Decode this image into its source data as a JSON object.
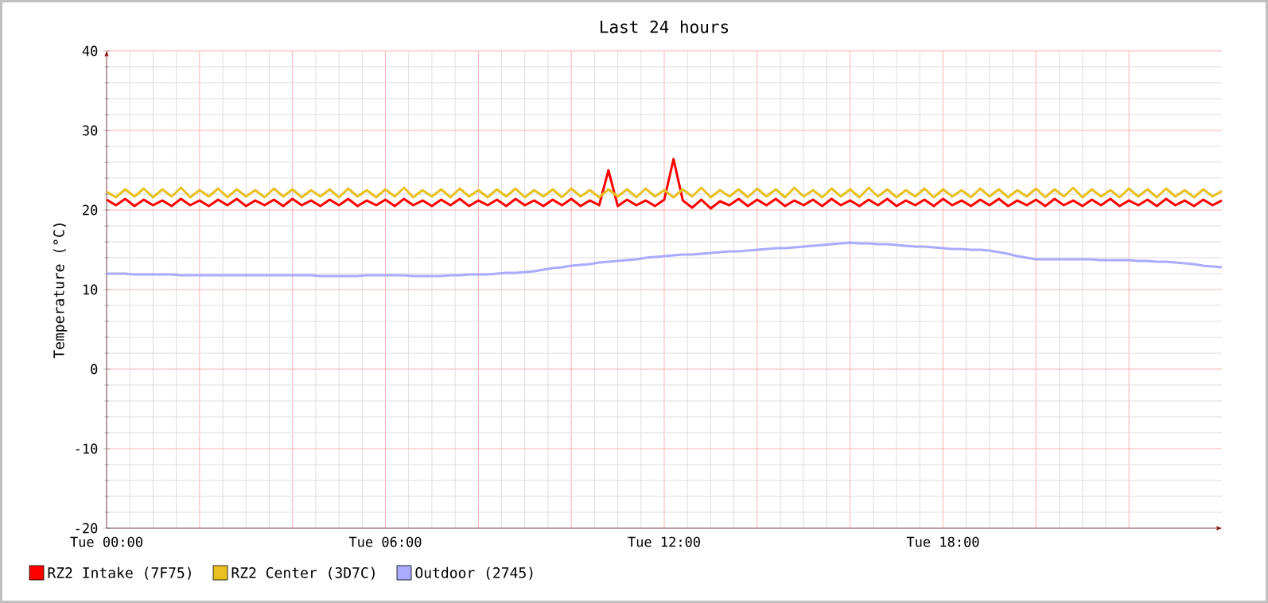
{
  "chart_data": {
    "type": "line",
    "title": "Last 24 hours",
    "ylabel": "Temperature (°C)",
    "ylim": [
      -20,
      40
    ],
    "yticks": [
      -20,
      -10,
      0,
      10,
      20,
      30,
      40
    ],
    "grid": true,
    "legend": "bottom",
    "categories": [
      "Tue 00:00",
      null,
      null,
      null,
      null,
      null,
      null,
      null,
      null,
      null,
      null,
      null,
      null,
      null,
      null,
      null,
      null,
      null,
      null,
      null,
      null,
      null,
      null,
      null,
      null,
      null,
      null,
      null,
      null,
      null,
      "Tue 06:00",
      null,
      null,
      null,
      null,
      null,
      null,
      null,
      null,
      null,
      null,
      null,
      null,
      null,
      null,
      null,
      null,
      null,
      null,
      null,
      null,
      null,
      null,
      null,
      null,
      null,
      null,
      null,
      null,
      null,
      "Tue 12:00",
      null,
      null,
      null,
      null,
      null,
      null,
      null,
      null,
      null,
      null,
      null,
      null,
      null,
      null,
      null,
      null,
      null,
      null,
      null,
      null,
      null,
      null,
      null,
      null,
      null,
      null,
      null,
      null,
      null,
      "Tue 18:00",
      null,
      null,
      null,
      null,
      null,
      null,
      null,
      null,
      null,
      null,
      null,
      null,
      null,
      null,
      null,
      null,
      null,
      null,
      null,
      null,
      null,
      null,
      null,
      null,
      null,
      null,
      null,
      null,
      null,
      null
    ],
    "series": [
      {
        "name": "RZ2 Center (3D7C)",
        "color": "#e8c020",
        "values": [
          22.3,
          21.6,
          22.6,
          21.7,
          22.7,
          21.6,
          22.6,
          21.7,
          22.8,
          21.6,
          22.5,
          21.7,
          22.7,
          21.6,
          22.6,
          21.7,
          22.5,
          21.6,
          22.7,
          21.7,
          22.6,
          21.6,
          22.5,
          21.7,
          22.6,
          21.6,
          22.7,
          21.7,
          22.5,
          21.6,
          22.6,
          21.7,
          22.8,
          21.6,
          22.5,
          21.7,
          22.6,
          21.6,
          22.7,
          21.7,
          22.5,
          21.6,
          22.6,
          21.7,
          22.7,
          21.6,
          22.5,
          21.7,
          22.6,
          21.6,
          22.7,
          21.7,
          22.5,
          21.6,
          22.6,
          21.7,
          22.6,
          21.6,
          22.7,
          21.7,
          22.5,
          21.6,
          22.6,
          21.7,
          22.8,
          21.6,
          22.5,
          21.7,
          22.6,
          21.6,
          22.7,
          21.7,
          22.6,
          21.6,
          22.8,
          21.7,
          22.5,
          21.6,
          22.7,
          21.7,
          22.6,
          21.6,
          22.8,
          21.7,
          22.6,
          21.6,
          22.5,
          21.7,
          22.7,
          21.6,
          22.6,
          21.7,
          22.5,
          21.6,
          22.7,
          21.7,
          22.6,
          21.6,
          22.5,
          21.7,
          22.7,
          21.6,
          22.6,
          21.7,
          22.8,
          21.6,
          22.6,
          21.7,
          22.5,
          21.6,
          22.7,
          21.7,
          22.6,
          21.6,
          22.7,
          21.7,
          22.5,
          21.6,
          22.6,
          21.7,
          22.4
        ]
      },
      {
        "name": "RZ2 Intake (7F75)",
        "color": "#ff0000",
        "values": [
          21.3,
          20.6,
          21.4,
          20.5,
          21.3,
          20.6,
          21.2,
          20.5,
          21.4,
          20.6,
          21.2,
          20.5,
          21.3,
          20.6,
          21.4,
          20.5,
          21.2,
          20.6,
          21.3,
          20.5,
          21.4,
          20.6,
          21.2,
          20.5,
          21.3,
          20.6,
          21.4,
          20.5,
          21.2,
          20.6,
          21.3,
          20.5,
          21.4,
          20.6,
          21.2,
          20.5,
          21.3,
          20.6,
          21.4,
          20.5,
          21.2,
          20.6,
          21.3,
          20.5,
          21.4,
          20.6,
          21.2,
          20.5,
          21.3,
          20.6,
          21.4,
          20.5,
          21.2,
          20.6,
          25.0,
          20.5,
          21.3,
          20.6,
          21.2,
          20.5,
          21.3,
          26.4,
          21.2,
          20.3,
          21.3,
          20.2,
          21.1,
          20.6,
          21.4,
          20.5,
          21.3,
          20.6,
          21.4,
          20.5,
          21.2,
          20.6,
          21.3,
          20.5,
          21.4,
          20.6,
          21.2,
          20.5,
          21.3,
          20.6,
          21.4,
          20.5,
          21.2,
          20.6,
          21.3,
          20.5,
          21.4,
          20.6,
          21.2,
          20.5,
          21.3,
          20.6,
          21.4,
          20.5,
          21.2,
          20.6,
          21.3,
          20.5,
          21.4,
          20.6,
          21.2,
          20.5,
          21.3,
          20.6,
          21.4,
          20.5,
          21.2,
          20.6,
          21.3,
          20.5,
          21.4,
          20.6,
          21.2,
          20.5,
          21.3,
          20.6,
          21.2
        ]
      },
      {
        "name": "Outdoor (2745)",
        "color": "#aaaaff",
        "values": [
          12.0,
          12.0,
          12.0,
          11.9,
          11.9,
          11.9,
          11.9,
          11.9,
          11.8,
          11.8,
          11.8,
          11.8,
          11.8,
          11.8,
          11.8,
          11.8,
          11.8,
          11.8,
          11.8,
          11.8,
          11.8,
          11.8,
          11.8,
          11.7,
          11.7,
          11.7,
          11.7,
          11.7,
          11.8,
          11.8,
          11.8,
          11.8,
          11.8,
          11.7,
          11.7,
          11.7,
          11.7,
          11.8,
          11.8,
          11.9,
          11.9,
          11.9,
          12.0,
          12.1,
          12.1,
          12.2,
          12.3,
          12.5,
          12.7,
          12.8,
          13.0,
          13.1,
          13.2,
          13.4,
          13.5,
          13.6,
          13.7,
          13.8,
          14.0,
          14.1,
          14.2,
          14.3,
          14.4,
          14.4,
          14.5,
          14.6,
          14.7,
          14.8,
          14.8,
          14.9,
          15.0,
          15.1,
          15.2,
          15.2,
          15.3,
          15.4,
          15.5,
          15.6,
          15.7,
          15.8,
          15.9,
          15.8,
          15.8,
          15.7,
          15.7,
          15.6,
          15.5,
          15.4,
          15.4,
          15.3,
          15.2,
          15.1,
          15.1,
          15.0,
          15.0,
          14.9,
          14.7,
          14.5,
          14.2,
          14.0,
          13.8,
          13.8,
          13.8,
          13.8,
          13.8,
          13.8,
          13.8,
          13.7,
          13.7,
          13.7,
          13.7,
          13.6,
          13.6,
          13.5,
          13.5,
          13.4,
          13.3,
          13.2,
          13.0,
          12.9,
          12.8
        ]
      }
    ]
  }
}
